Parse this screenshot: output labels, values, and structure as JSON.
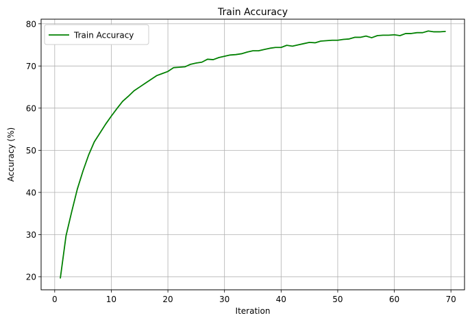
{
  "chart_data": {
    "type": "line",
    "title": "Train Accuracy",
    "xlabel": "Iteration",
    "ylabel": "Accuracy (%)",
    "xlim": [
      -2.4,
      72.4
    ],
    "ylim": [
      16.9,
      81.1
    ],
    "xticks": [
      0,
      10,
      20,
      30,
      40,
      50,
      60,
      70
    ],
    "yticks": [
      20,
      30,
      40,
      50,
      60,
      70,
      80
    ],
    "grid": true,
    "legend_position": "top-left",
    "series": [
      {
        "name": "Train Accuracy",
        "color": "#008000",
        "x": [
          1,
          2,
          3,
          4,
          5,
          6,
          7,
          8,
          9,
          10,
          11,
          12,
          13,
          14,
          15,
          16,
          17,
          18,
          19,
          20,
          21,
          22,
          23,
          24,
          25,
          26,
          27,
          28,
          29,
          30,
          31,
          32,
          33,
          34,
          35,
          36,
          37,
          38,
          39,
          40,
          41,
          42,
          43,
          44,
          45,
          46,
          47,
          48,
          49,
          50,
          51,
          52,
          53,
          54,
          55,
          56,
          57,
          58,
          59,
          60,
          61,
          62,
          63,
          64,
          65,
          66,
          67,
          68,
          69
        ],
        "y": [
          19.7,
          29.7,
          35.4,
          40.8,
          45.1,
          48.9,
          52.0,
          54.1,
          56.2,
          58.1,
          59.9,
          61.6,
          62.8,
          64.1,
          65.0,
          65.9,
          66.8,
          67.7,
          68.2,
          68.7,
          69.6,
          69.7,
          69.8,
          70.4,
          70.7,
          70.9,
          71.6,
          71.5,
          72.0,
          72.3,
          72.6,
          72.7,
          72.9,
          73.3,
          73.6,
          73.6,
          73.9,
          74.2,
          74.4,
          74.4,
          74.9,
          74.7,
          75.0,
          75.3,
          75.6,
          75.5,
          75.9,
          76.0,
          76.1,
          76.1,
          76.3,
          76.4,
          76.8,
          76.8,
          77.1,
          76.7,
          77.2,
          77.3,
          77.3,
          77.4,
          77.2,
          77.7,
          77.7,
          77.9,
          77.9,
          78.3,
          78.1,
          78.1,
          78.2
        ]
      }
    ]
  }
}
